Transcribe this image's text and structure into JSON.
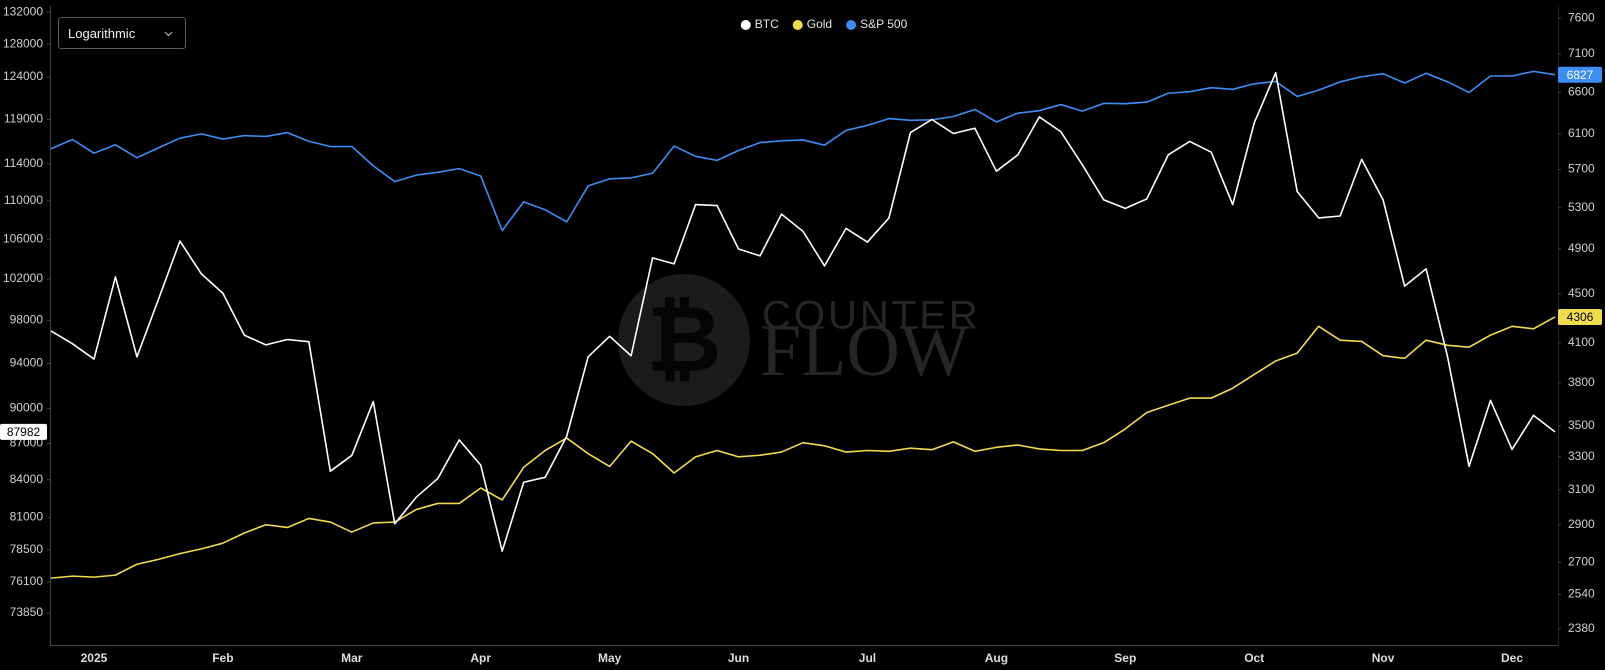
{
  "controls": {
    "scale_select": "Logarithmic"
  },
  "watermark": {
    "symbol": "₿",
    "line1": "COUNTER",
    "line2": "FLOW"
  },
  "chart_data": {
    "type": "line",
    "log_scale": true,
    "grid": false,
    "legend_position": "top",
    "background": "#000000",
    "categories": [
      null,
      null,
      "2025",
      null,
      null,
      null,
      null,
      null,
      "Feb",
      null,
      null,
      null,
      null,
      null,
      "Mar",
      null,
      null,
      null,
      null,
      null,
      "Apr",
      null,
      null,
      null,
      null,
      null,
      "May",
      null,
      null,
      null,
      null,
      null,
      "Jun",
      null,
      null,
      null,
      null,
      null,
      "Jul",
      null,
      null,
      null,
      null,
      null,
      "Aug",
      null,
      null,
      null,
      null,
      null,
      "Sep",
      null,
      null,
      null,
      null,
      null,
      "Oct",
      null,
      null,
      null,
      null,
      null,
      "Nov",
      null,
      null,
      null,
      null,
      null,
      "Dec",
      null,
      null
    ],
    "ylim": [
      71600,
      132800
    ],
    "yticks": [
      73850,
      76100,
      78500,
      81000,
      84000,
      87000,
      90000,
      94000,
      98000,
      102000,
      106000,
      110000,
      114000,
      119000,
      124000,
      128000,
      132000
    ],
    "y2lim": [
      2307,
      7780
    ],
    "y2ticks": [
      2380,
      2540,
      2700,
      2900,
      3100,
      3300,
      3500,
      3800,
      4100,
      4500,
      4900,
      5300,
      5700,
      6100,
      6600,
      7100,
      7600
    ],
    "series": [
      {
        "name": "BTC",
        "color": "#ffffff",
        "badge": "left",
        "badge_text_color": "#000000",
        "values": [
          97000,
          95800,
          94400,
          102200,
          94600,
          100000,
          105800,
          102500,
          100600,
          96600,
          95700,
          96200,
          96000,
          84700,
          86000,
          90600,
          80500,
          82600,
          84100,
          87300,
          85200,
          78400,
          83800,
          84200,
          87600,
          94600,
          96500,
          94700,
          104100,
          103500,
          109600,
          109500,
          105000,
          104300,
          108600,
          106800,
          103300,
          107100,
          105700,
          108200,
          117500,
          119000,
          117400,
          118000,
          113200,
          115000,
          119300,
          117600,
          113900,
          110100,
          109200,
          110200,
          115000,
          116500,
          115300,
          109600,
          118600,
          124500,
          111000,
          108200,
          108400,
          114500,
          110100,
          101300,
          103000,
          94600,
          85100,
          90700,
          86500,
          89400,
          87982
        ]
      },
      {
        "name": "Gold",
        "color": "#f3dc4b",
        "axis": "y2",
        "badge": "right",
        "badge_text_color": "#000000",
        "values": [
          2620,
          2630,
          2625,
          2635,
          2690,
          2715,
          2745,
          2770,
          2800,
          2855,
          2900,
          2885,
          2935,
          2915,
          2860,
          2910,
          2915,
          2985,
          3020,
          3020,
          3110,
          3040,
          3235,
          3340,
          3420,
          3320,
          3240,
          3400,
          3320,
          3200,
          3300,
          3340,
          3300,
          3310,
          3330,
          3390,
          3370,
          3330,
          3340,
          3335,
          3355,
          3345,
          3395,
          3335,
          3360,
          3375,
          3350,
          3340,
          3340,
          3390,
          3480,
          3590,
          3640,
          3690,
          3690,
          3760,
          3860,
          3960,
          4020,
          4230,
          4120,
          4110,
          4000,
          3980,
          4120,
          4080,
          4065,
          4160,
          4230,
          4210,
          4306
        ]
      },
      {
        "name": "S&P 500",
        "color": "#3a8ef6",
        "axis": "y2",
        "badge": "right",
        "badge_text_color": "#ffffff",
        "values": [
          5930,
          6035,
          5880,
          5975,
          5830,
          5940,
          6050,
          6100,
          6040,
          6080,
          6070,
          6115,
          6015,
          5955,
          5955,
          5740,
          5570,
          5640,
          5670,
          5710,
          5630,
          5075,
          5360,
          5280,
          5160,
          5525,
          5600,
          5610,
          5660,
          5960,
          5845,
          5800,
          5910,
          6000,
          6020,
          6030,
          5970,
          6140,
          6200,
          6280,
          6260,
          6265,
          6305,
          6390,
          6240,
          6345,
          6375,
          6450,
          6370,
          6465,
          6460,
          6480,
          6590,
          6610,
          6660,
          6640,
          6710,
          6740,
          6550,
          6630,
          6735,
          6800,
          6840,
          6720,
          6845,
          6735,
          6600,
          6810,
          6810,
          6870,
          6827
        ]
      }
    ]
  }
}
